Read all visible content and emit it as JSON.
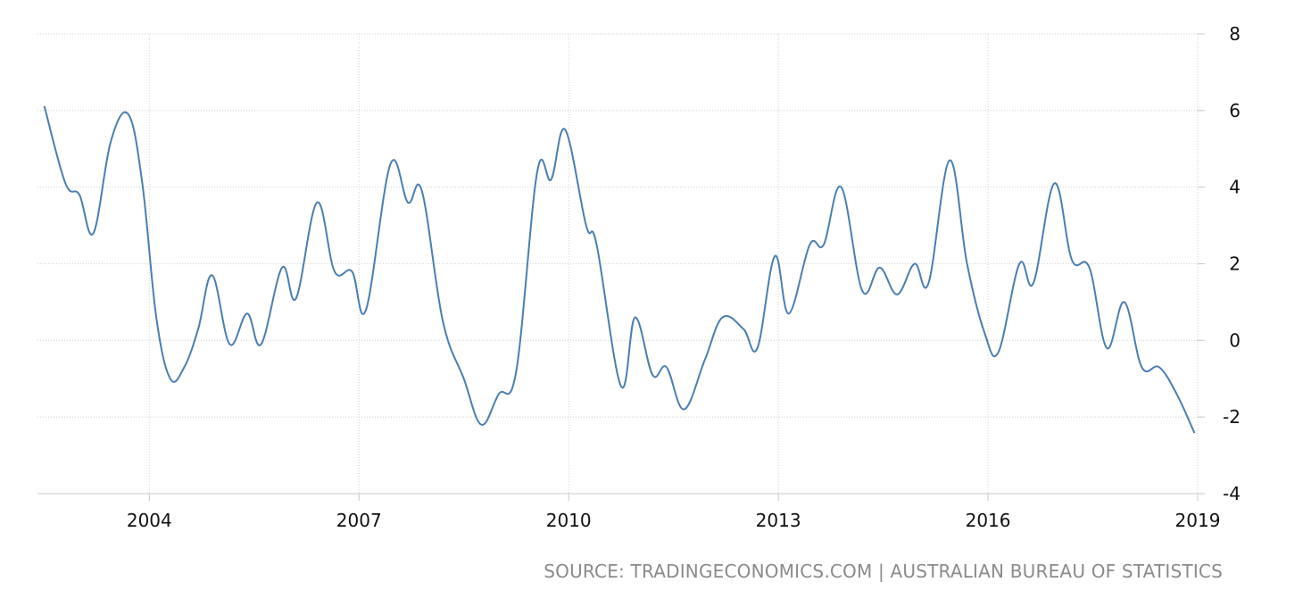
{
  "chart_data": {
    "type": "line",
    "x_tick_labels": [
      "2004",
      "2007",
      "2010",
      "2013",
      "2016",
      "2019"
    ],
    "y_tick_labels": [
      "8",
      "6",
      "4",
      "2",
      "0",
      "-2",
      "-4"
    ],
    "ylim": [
      -4,
      8
    ],
    "xlim": [
      2002.4,
      2019.0
    ],
    "grid": true,
    "y_axis_position": "right",
    "source": "SOURCE: TRADINGECONOMICS.COM | AUSTRALIAN BUREAU OF STATISTICS",
    "series": [
      {
        "color": "#4a7eb0",
        "points": [
          [
            2002.5,
            6.1
          ],
          [
            2002.8,
            4.1
          ],
          [
            2003.0,
            3.8
          ],
          [
            2003.2,
            2.8
          ],
          [
            2003.45,
            5.2
          ],
          [
            2003.7,
            5.9
          ],
          [
            2003.9,
            4.1
          ],
          [
            2004.1,
            0.6
          ],
          [
            2004.3,
            -1.0
          ],
          [
            2004.5,
            -0.7
          ],
          [
            2004.7,
            0.3
          ],
          [
            2004.9,
            1.7
          ],
          [
            2005.15,
            -0.1
          ],
          [
            2005.4,
            0.7
          ],
          [
            2005.6,
            -0.1
          ],
          [
            2005.9,
            1.9
          ],
          [
            2006.1,
            1.1
          ],
          [
            2006.4,
            3.6
          ],
          [
            2006.65,
            1.8
          ],
          [
            2006.9,
            1.8
          ],
          [
            2007.1,
            0.8
          ],
          [
            2007.45,
            4.6
          ],
          [
            2007.7,
            3.6
          ],
          [
            2007.9,
            3.9
          ],
          [
            2008.2,
            0.5
          ],
          [
            2008.5,
            -1.0
          ],
          [
            2008.75,
            -2.2
          ],
          [
            2009.0,
            -1.4
          ],
          [
            2009.25,
            -0.8
          ],
          [
            2009.55,
            4.4
          ],
          [
            2009.75,
            4.2
          ],
          [
            2009.95,
            5.5
          ],
          [
            2010.25,
            3.0
          ],
          [
            2010.4,
            2.5
          ],
          [
            2010.75,
            -1.2
          ],
          [
            2010.95,
            0.6
          ],
          [
            2011.2,
            -0.9
          ],
          [
            2011.4,
            -0.7
          ],
          [
            2011.65,
            -1.8
          ],
          [
            2011.95,
            -0.5
          ],
          [
            2012.2,
            0.6
          ],
          [
            2012.5,
            0.3
          ],
          [
            2012.7,
            -0.2
          ],
          [
            2012.95,
            2.2
          ],
          [
            2013.15,
            0.7
          ],
          [
            2013.45,
            2.5
          ],
          [
            2013.65,
            2.5
          ],
          [
            2013.9,
            4.0
          ],
          [
            2014.2,
            1.3
          ],
          [
            2014.45,
            1.9
          ],
          [
            2014.7,
            1.2
          ],
          [
            2014.95,
            2.0
          ],
          [
            2015.15,
            1.5
          ],
          [
            2015.45,
            4.7
          ],
          [
            2015.7,
            2.0
          ],
          [
            2015.95,
            0.2
          ],
          [
            2016.15,
            -0.3
          ],
          [
            2016.45,
            2.0
          ],
          [
            2016.65,
            1.5
          ],
          [
            2016.95,
            4.1
          ],
          [
            2017.2,
            2.1
          ],
          [
            2017.45,
            1.9
          ],
          [
            2017.7,
            -0.2
          ],
          [
            2017.95,
            1.0
          ],
          [
            2018.2,
            -0.7
          ],
          [
            2018.45,
            -0.7
          ],
          [
            2018.7,
            -1.4
          ],
          [
            2018.95,
            -2.4
          ]
        ]
      }
    ]
  }
}
